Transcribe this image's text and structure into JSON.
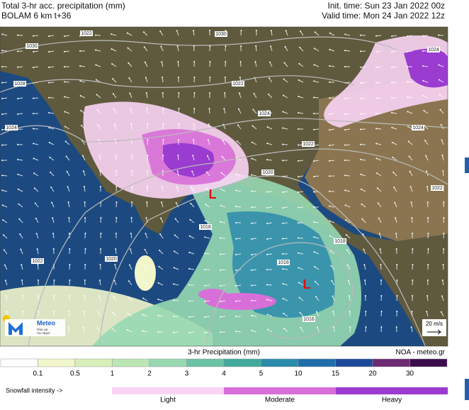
{
  "header": {
    "title": "Total 3-hr acc. precipitation (mm)",
    "model": "BOLAM 6 km t+36",
    "init_time": "Init. time: Sun 23 Jan 2022 00z",
    "valid_time": "Valid time: Mon 24 Jan 2022 12z"
  },
  "map": {
    "isobar_labels": [
      "1030",
      "1028",
      "1024",
      "1022",
      "1030",
      "1022",
      "1024",
      "1022",
      "1024",
      "1024",
      "1022",
      "1020",
      "1020",
      "1022",
      "1018",
      "1018",
      "1018",
      "1016"
    ],
    "lows": [
      "L",
      "L"
    ],
    "logo": {
      "name": "Meteo",
      "tagline_1": "Όλα για",
      "tagline_2": "τον καιρό"
    },
    "wind_scale": "20 m/s"
  },
  "legend": {
    "title": "3-hr Precipitation (mm)",
    "credit": "NOA - meteo.gr",
    "labels": [
      "0.1",
      "0.5",
      "1",
      "2",
      "3",
      "4",
      "5",
      "10",
      "15",
      "20",
      "30"
    ],
    "colors": [
      "#ffffff",
      "#f1f6cb",
      "#d9efba",
      "#bce6b5",
      "#97d8b1",
      "#6ac3a6",
      "#41a99d",
      "#2b8bab",
      "#1f6daa",
      "#1b4a98",
      "#6c2b73",
      "#3b0c4b"
    ]
  },
  "snowfall": {
    "label": "Snowfall intensity ->",
    "levels": [
      {
        "name": "Light",
        "color": "#f9d4f4"
      },
      {
        "name": "Moderate",
        "color": "#d86fd8"
      },
      {
        "name": "Heavy",
        "color": "#9a3ccf"
      }
    ]
  }
}
